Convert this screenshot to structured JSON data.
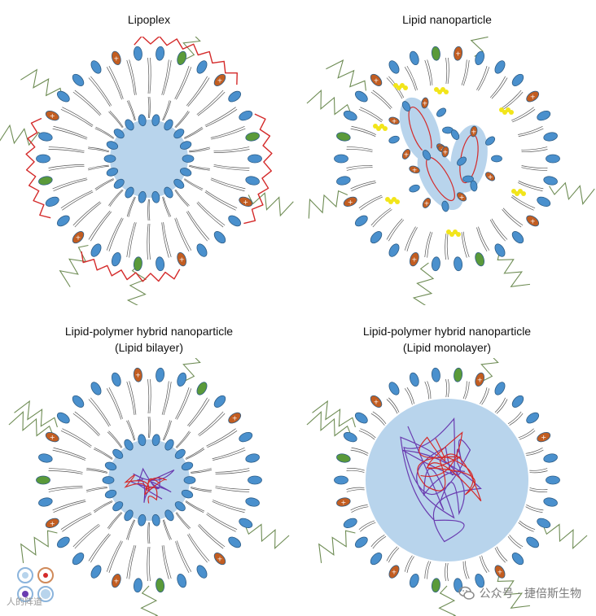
{
  "panels": [
    {
      "id": "lipoplex",
      "title_lines": [
        "Lipoplex"
      ],
      "variant": "lipoplex"
    },
    {
      "id": "lnp",
      "title_lines": [
        "Lipid nanoparticle"
      ],
      "variant": "lnp"
    },
    {
      "id": "lphn-bilayer",
      "title_lines": [
        "Lipid-polymer hybrid nanoparticle",
        "(Lipid bilayer)"
      ],
      "variant": "bilayer"
    },
    {
      "id": "lphn-monolayer",
      "title_lines": [
        "Lipid-polymer hybrid nanoparticle",
        "(Lipid monolayer)"
      ],
      "variant": "monolayer"
    }
  ],
  "colors": {
    "head_blue": "#4a90cd",
    "head_orange": "#c25d21",
    "head_green": "#5a9a3a",
    "core_fill": "#b8d4ec",
    "rna_red": "#d42a2a",
    "polymer_purple": "#6a3cb0",
    "ionizable_yellow": "#f2e51a",
    "peg_green": "#6e8c54",
    "tail": "#555555"
  },
  "watermark": {
    "text": "公众号 · 捷倍斯生物",
    "icon": "wechat-icon"
  },
  "thumbnail": {
    "text": "人的阵道"
  }
}
